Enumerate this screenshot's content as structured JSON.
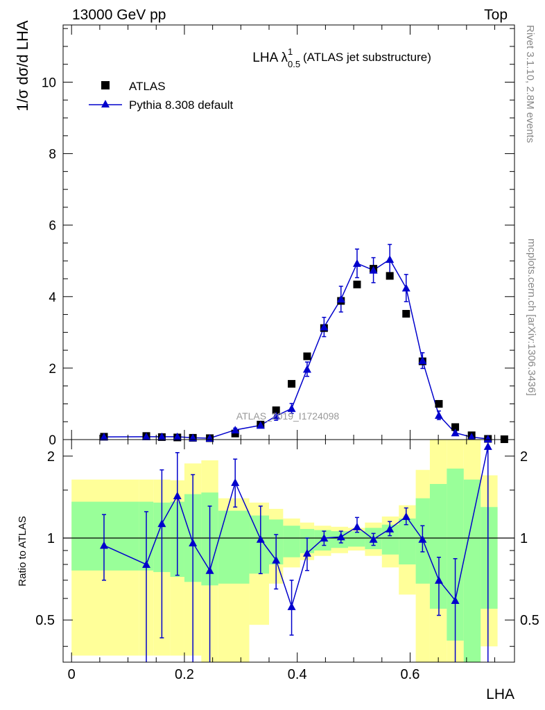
{
  "header": {
    "left": "13000 GeV pp",
    "right": "Top"
  },
  "side_labels": {
    "rivet": "Rivet 3.1.10,  2.8M events",
    "mcplots": "mcplots.cern.ch [arXiv:1306.3436]"
  },
  "watermark": "ATLAS_2019_I1724098",
  "chart_data": [
    {
      "type": "scatter",
      "panel": "main",
      "title_main": "LHA λ",
      "title_sup": "1",
      "title_sub": "0.5",
      "title_rest": "(ATLAS jet substructure)",
      "ylabel": "1/σ dσ/d LHA",
      "xlim": [
        -0.015,
        0.785
      ],
      "ylim": [
        0,
        11.6
      ],
      "yticks": [
        0,
        2,
        4,
        6,
        8,
        10
      ],
      "series": [
        {
          "name": "ATLAS",
          "color": "#000000",
          "marker": "square",
          "x": [
            0.0575,
            0.1325,
            0.16,
            0.1875,
            0.215,
            0.245,
            0.29,
            0.335,
            0.3625,
            0.39,
            0.4175,
            0.4475,
            0.4775,
            0.506,
            0.535,
            0.564,
            0.593,
            0.622,
            0.651,
            0.68,
            0.709,
            0.738,
            0.767
          ],
          "y": [
            0.08,
            0.1,
            0.07,
            0.06,
            0.05,
            0.04,
            0.17,
            0.42,
            0.82,
            1.56,
            2.33,
            3.12,
            3.88,
            4.34,
            4.78,
            4.58,
            3.52,
            2.19,
            1.0,
            0.35,
            0.12,
            0.02,
            0.01
          ]
        },
        {
          "name": "Pythia 8.308 default",
          "color": "#0000cc",
          "marker": "triangle",
          "x": [
            0.0575,
            0.1325,
            0.16,
            0.1875,
            0.215,
            0.245,
            0.29,
            0.335,
            0.3625,
            0.39,
            0.4175,
            0.4475,
            0.4775,
            0.506,
            0.535,
            0.564,
            0.593,
            0.622,
            0.651,
            0.68,
            0.709,
            0.738
          ],
          "y": [
            0.075,
            0.08,
            0.08,
            0.08,
            0.05,
            0.04,
            0.27,
            0.4,
            0.66,
            0.87,
            1.97,
            3.15,
            3.93,
            4.93,
            4.74,
            5.04,
            4.24,
            2.21,
            0.68,
            0.19,
            0.07,
            0.02
          ],
          "err": [
            0.02,
            0.03,
            0.03,
            0.03,
            0.02,
            0.02,
            0.05,
            0.07,
            0.12,
            0.14,
            0.2,
            0.27,
            0.36,
            0.4,
            0.35,
            0.42,
            0.38,
            0.22,
            0.12,
            0.05,
            0.03,
            0.01
          ]
        }
      ]
    },
    {
      "type": "line",
      "panel": "ratio",
      "ylabel": "Ratio to ATLAS",
      "xlabel": "LHA",
      "xlim": [
        -0.015,
        0.785
      ],
      "ylim": [
        0.35,
        2.3
      ],
      "yticks": [
        0.5,
        1,
        2
      ],
      "ref": 1,
      "xticks": [
        0,
        0.2,
        0.4,
        0.6
      ],
      "bands": {
        "edges": [
          0.0,
          0.12,
          0.145,
          0.175,
          0.2,
          0.23,
          0.26,
          0.315,
          0.35,
          0.375,
          0.405,
          0.43,
          0.46,
          0.49,
          0.52,
          0.55,
          0.58,
          0.61,
          0.635,
          0.665,
          0.695,
          0.725,
          0.755
        ],
        "yellow_lo": [
          0.37,
          0.37,
          0.37,
          0.37,
          0.37,
          0.35,
          0.35,
          0.48,
          0.68,
          0.78,
          0.83,
          0.86,
          0.88,
          0.9,
          0.86,
          0.78,
          0.62,
          0.35,
          0.35,
          0.35,
          0.35,
          0.4
        ],
        "yellow_hi": [
          1.64,
          1.64,
          1.64,
          1.63,
          1.88,
          1.93,
          1.4,
          1.35,
          1.28,
          1.18,
          1.14,
          1.11,
          1.1,
          1.09,
          1.14,
          1.2,
          1.32,
          1.78,
          2.3,
          2.3,
          2.3,
          1.7
        ],
        "green_lo": [
          0.76,
          0.76,
          0.75,
          0.72,
          0.69,
          0.67,
          0.68,
          0.74,
          0.8,
          0.85,
          0.88,
          0.9,
          0.92,
          0.93,
          0.91,
          0.87,
          0.8,
          0.68,
          0.55,
          0.42,
          0.35,
          0.55
        ],
        "green_hi": [
          1.36,
          1.36,
          1.35,
          1.36,
          1.45,
          1.47,
          1.26,
          1.21,
          1.17,
          1.11,
          1.08,
          1.07,
          1.06,
          1.06,
          1.09,
          1.12,
          1.18,
          1.4,
          1.58,
          1.8,
          1.64,
          1.3
        ]
      },
      "series": [
        {
          "name": "Pythia 8.308 default",
          "color": "#0000cc",
          "x": [
            0.0575,
            0.1325,
            0.16,
            0.1875,
            0.215,
            0.245,
            0.29,
            0.335,
            0.3625,
            0.39,
            0.4175,
            0.4475,
            0.4775,
            0.506,
            0.535,
            0.564,
            0.593,
            0.622,
            0.651,
            0.68,
            0.738
          ],
          "y": [
            0.94,
            0.8,
            1.13,
            1.43,
            0.96,
            0.76,
            1.6,
            0.99,
            0.83,
            0.56,
            0.88,
            1.0,
            1.01,
            1.1,
            0.99,
            1.08,
            1.2,
            0.99,
            0.7,
            0.59,
            2.17
          ],
          "err_lo": [
            0.24,
            0.55,
            0.7,
            0.7,
            0.65,
            0.45,
            0.3,
            0.25,
            0.18,
            0.12,
            0.12,
            0.06,
            0.05,
            0.05,
            0.05,
            0.06,
            0.08,
            0.1,
            0.18,
            0.25,
            1.9
          ],
          "err_hi": [
            0.28,
            0.45,
            0.65,
            0.63,
            0.75,
            0.55,
            0.35,
            0.32,
            0.2,
            0.14,
            0.12,
            0.06,
            0.05,
            0.09,
            0.05,
            0.07,
            0.09,
            0.12,
            0.15,
            0.25,
            0.25
          ]
        }
      ]
    }
  ]
}
